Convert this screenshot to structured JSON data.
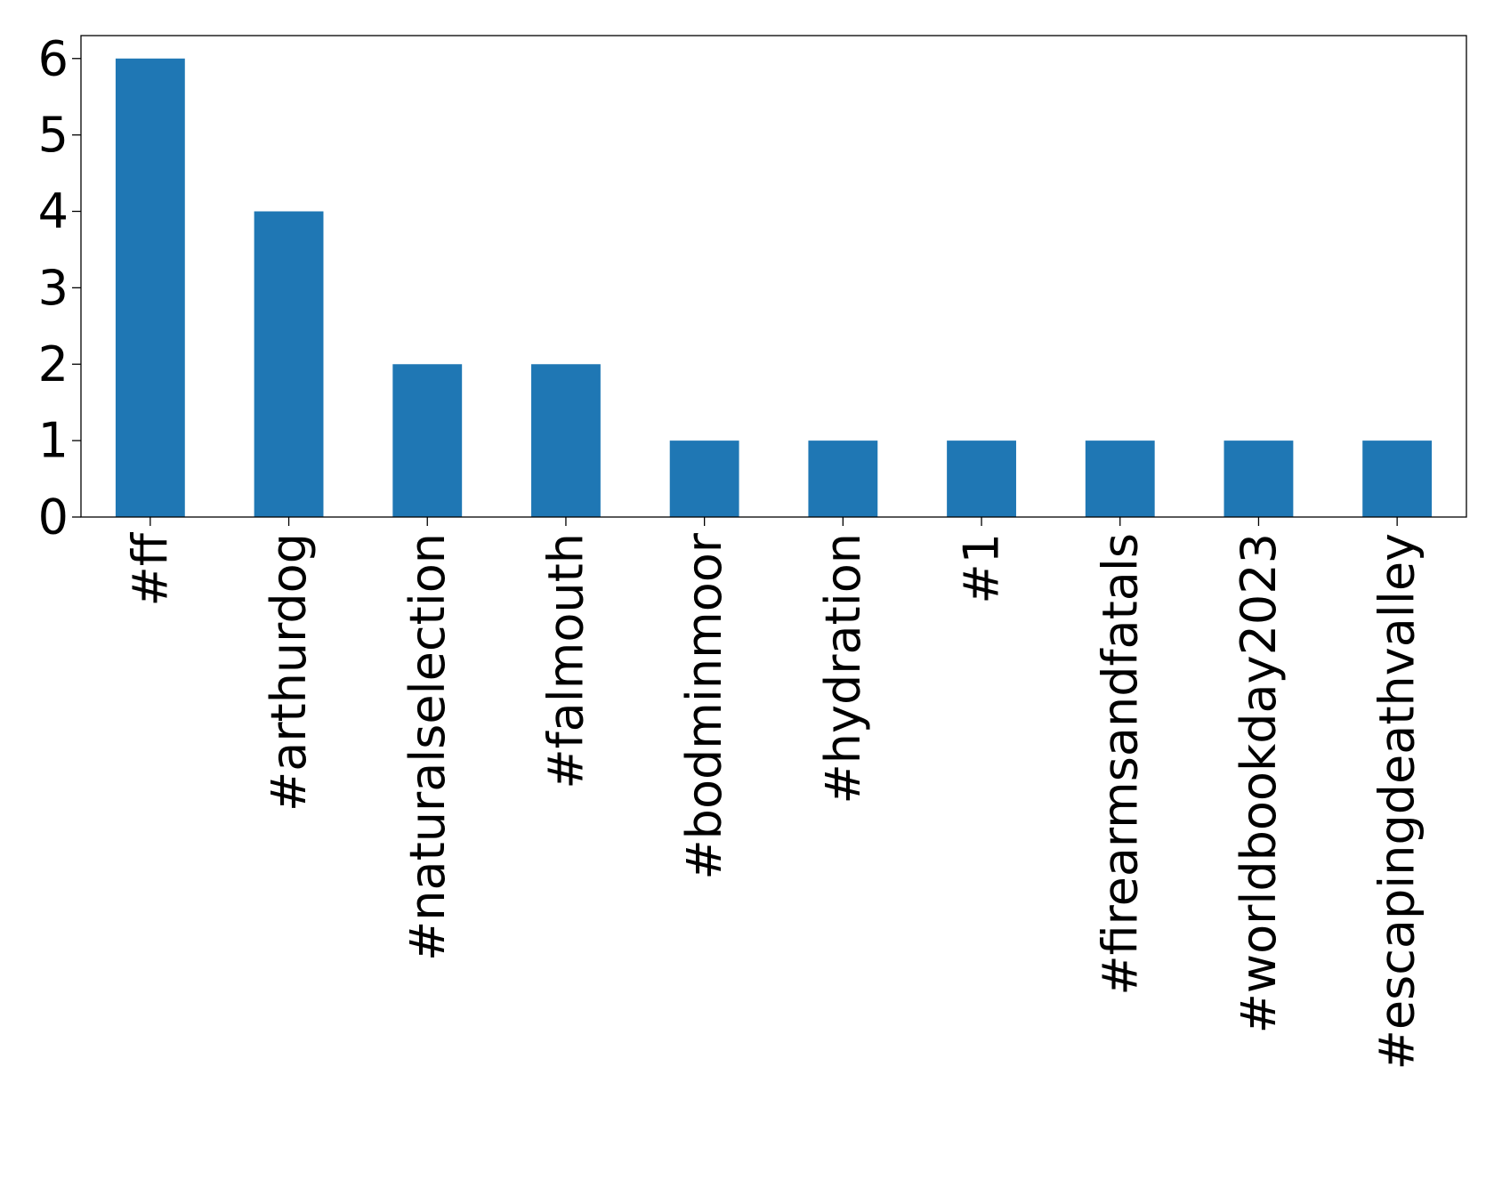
{
  "chart_data": {
    "type": "bar",
    "categories": [
      "#ff",
      "#arthurdog",
      "#naturalselection",
      "#falmouth",
      "#bodminmoor",
      "#hydration",
      "#1",
      "#firearmsandfatals",
      "#worldbookday2023",
      "#escapingdeathvalley"
    ],
    "values": [
      6,
      4,
      2,
      2,
      1,
      1,
      1,
      1,
      1,
      1
    ],
    "ylim": [
      0,
      6.3
    ],
    "yticks": [
      "0",
      "1",
      "2",
      "3",
      "4",
      "5",
      "6"
    ],
    "title": "",
    "xlabel": "",
    "ylabel": "",
    "grid": false,
    "bar_color": "#1f77b4"
  }
}
